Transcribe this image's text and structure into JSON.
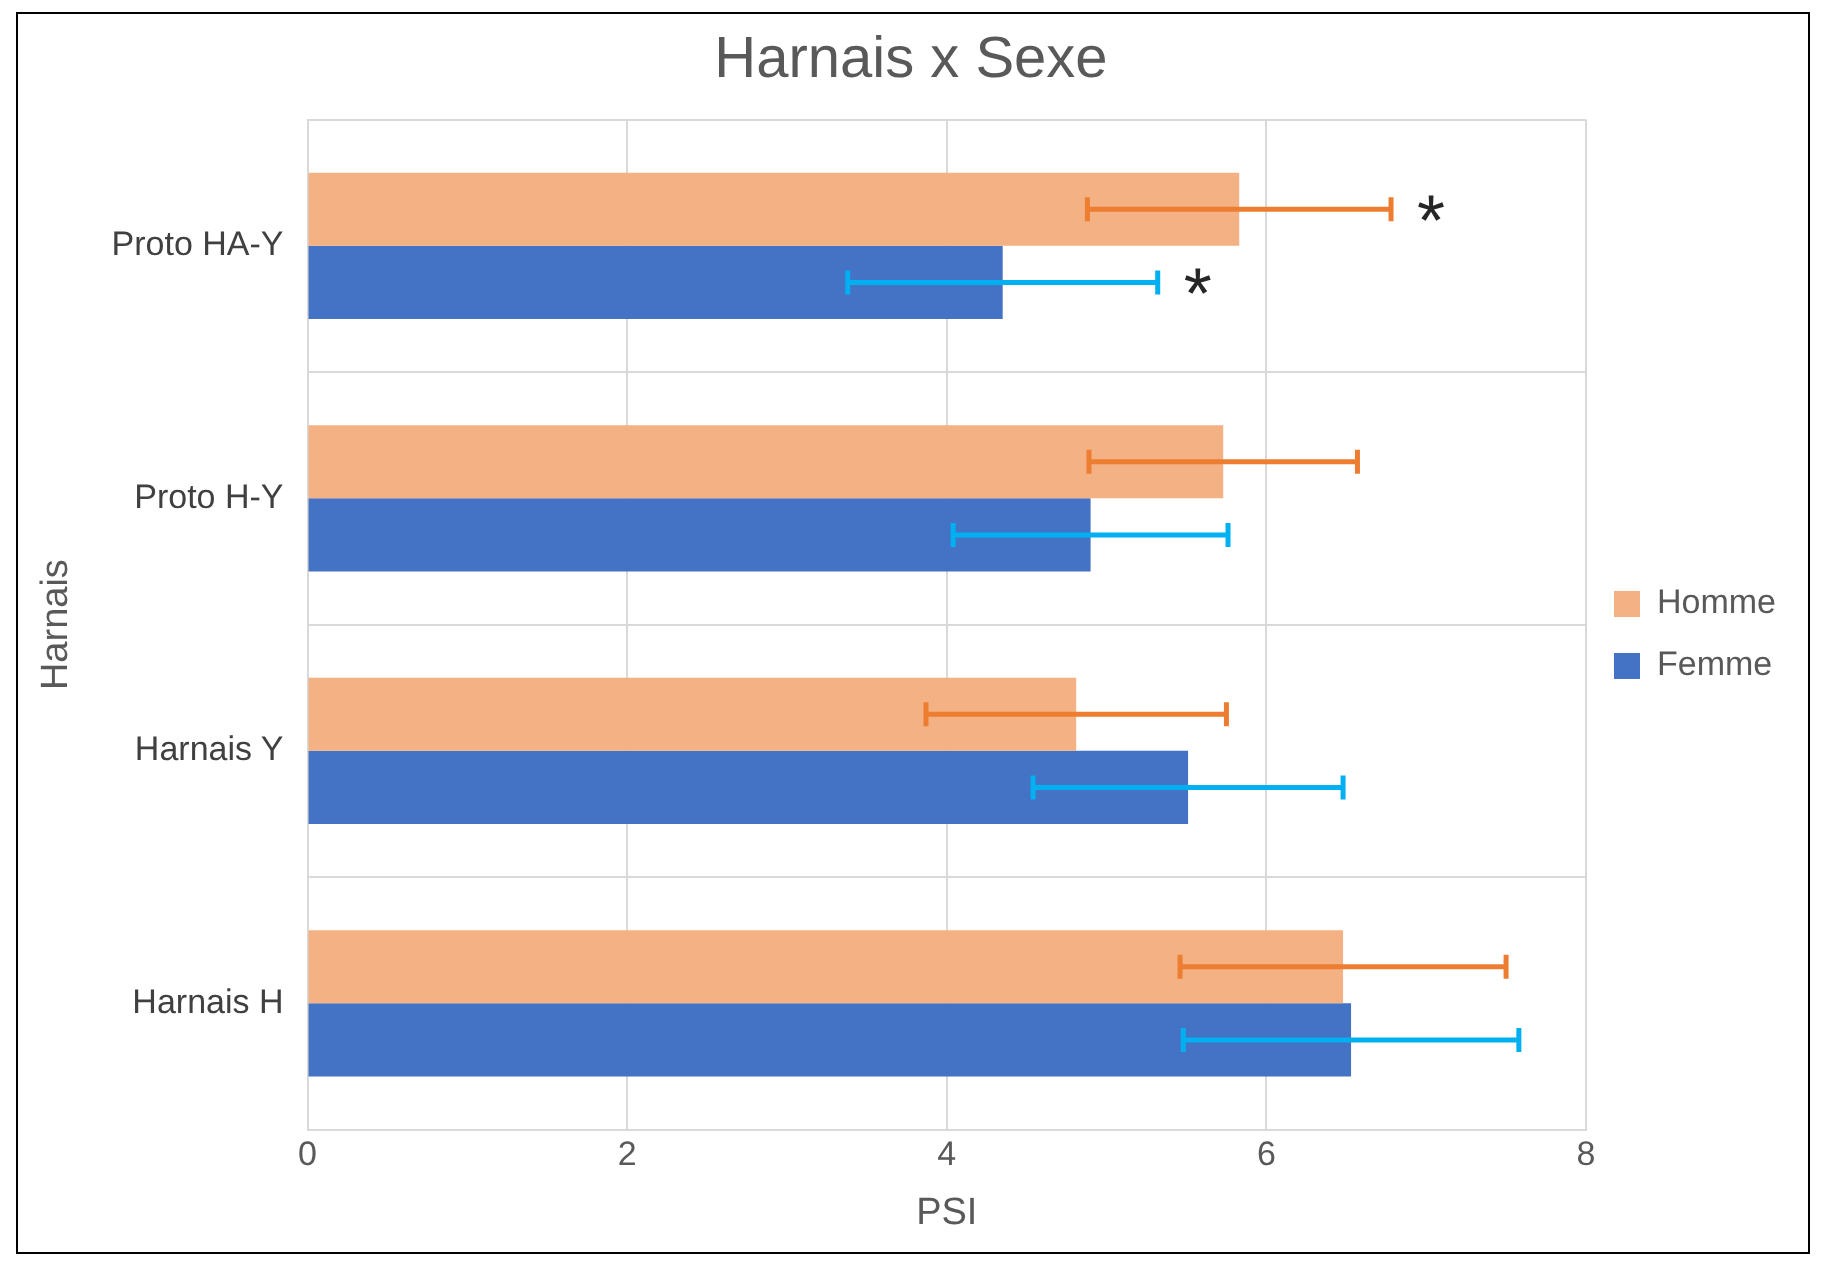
{
  "chart_data": {
    "type": "bar",
    "orientation": "horizontal",
    "title": "Harnais x Sexe",
    "xlabel": "PSI",
    "ylabel": "Harnais",
    "categories": [
      "Proto HA-Y",
      "Proto H-Y",
      "Harnais Y",
      "Harnais H"
    ],
    "series": [
      {
        "name": "Homme",
        "color": "#f4b183",
        "values": [
          5.83,
          5.73,
          4.81,
          6.48
        ],
        "errors": [
          0.95,
          0.84,
          0.94,
          1.02
        ]
      },
      {
        "name": "Femme",
        "color": "#4472c4",
        "values": [
          4.35,
          4.9,
          5.51,
          6.53
        ],
        "errors": [
          0.97,
          0.86,
          0.97,
          1.05
        ]
      }
    ],
    "xlim": [
      0,
      8
    ],
    "xticks": [
      0,
      2,
      4,
      6,
      8
    ],
    "grid": true,
    "legend": "right",
    "annotations": [
      "*",
      "*"
    ]
  }
}
